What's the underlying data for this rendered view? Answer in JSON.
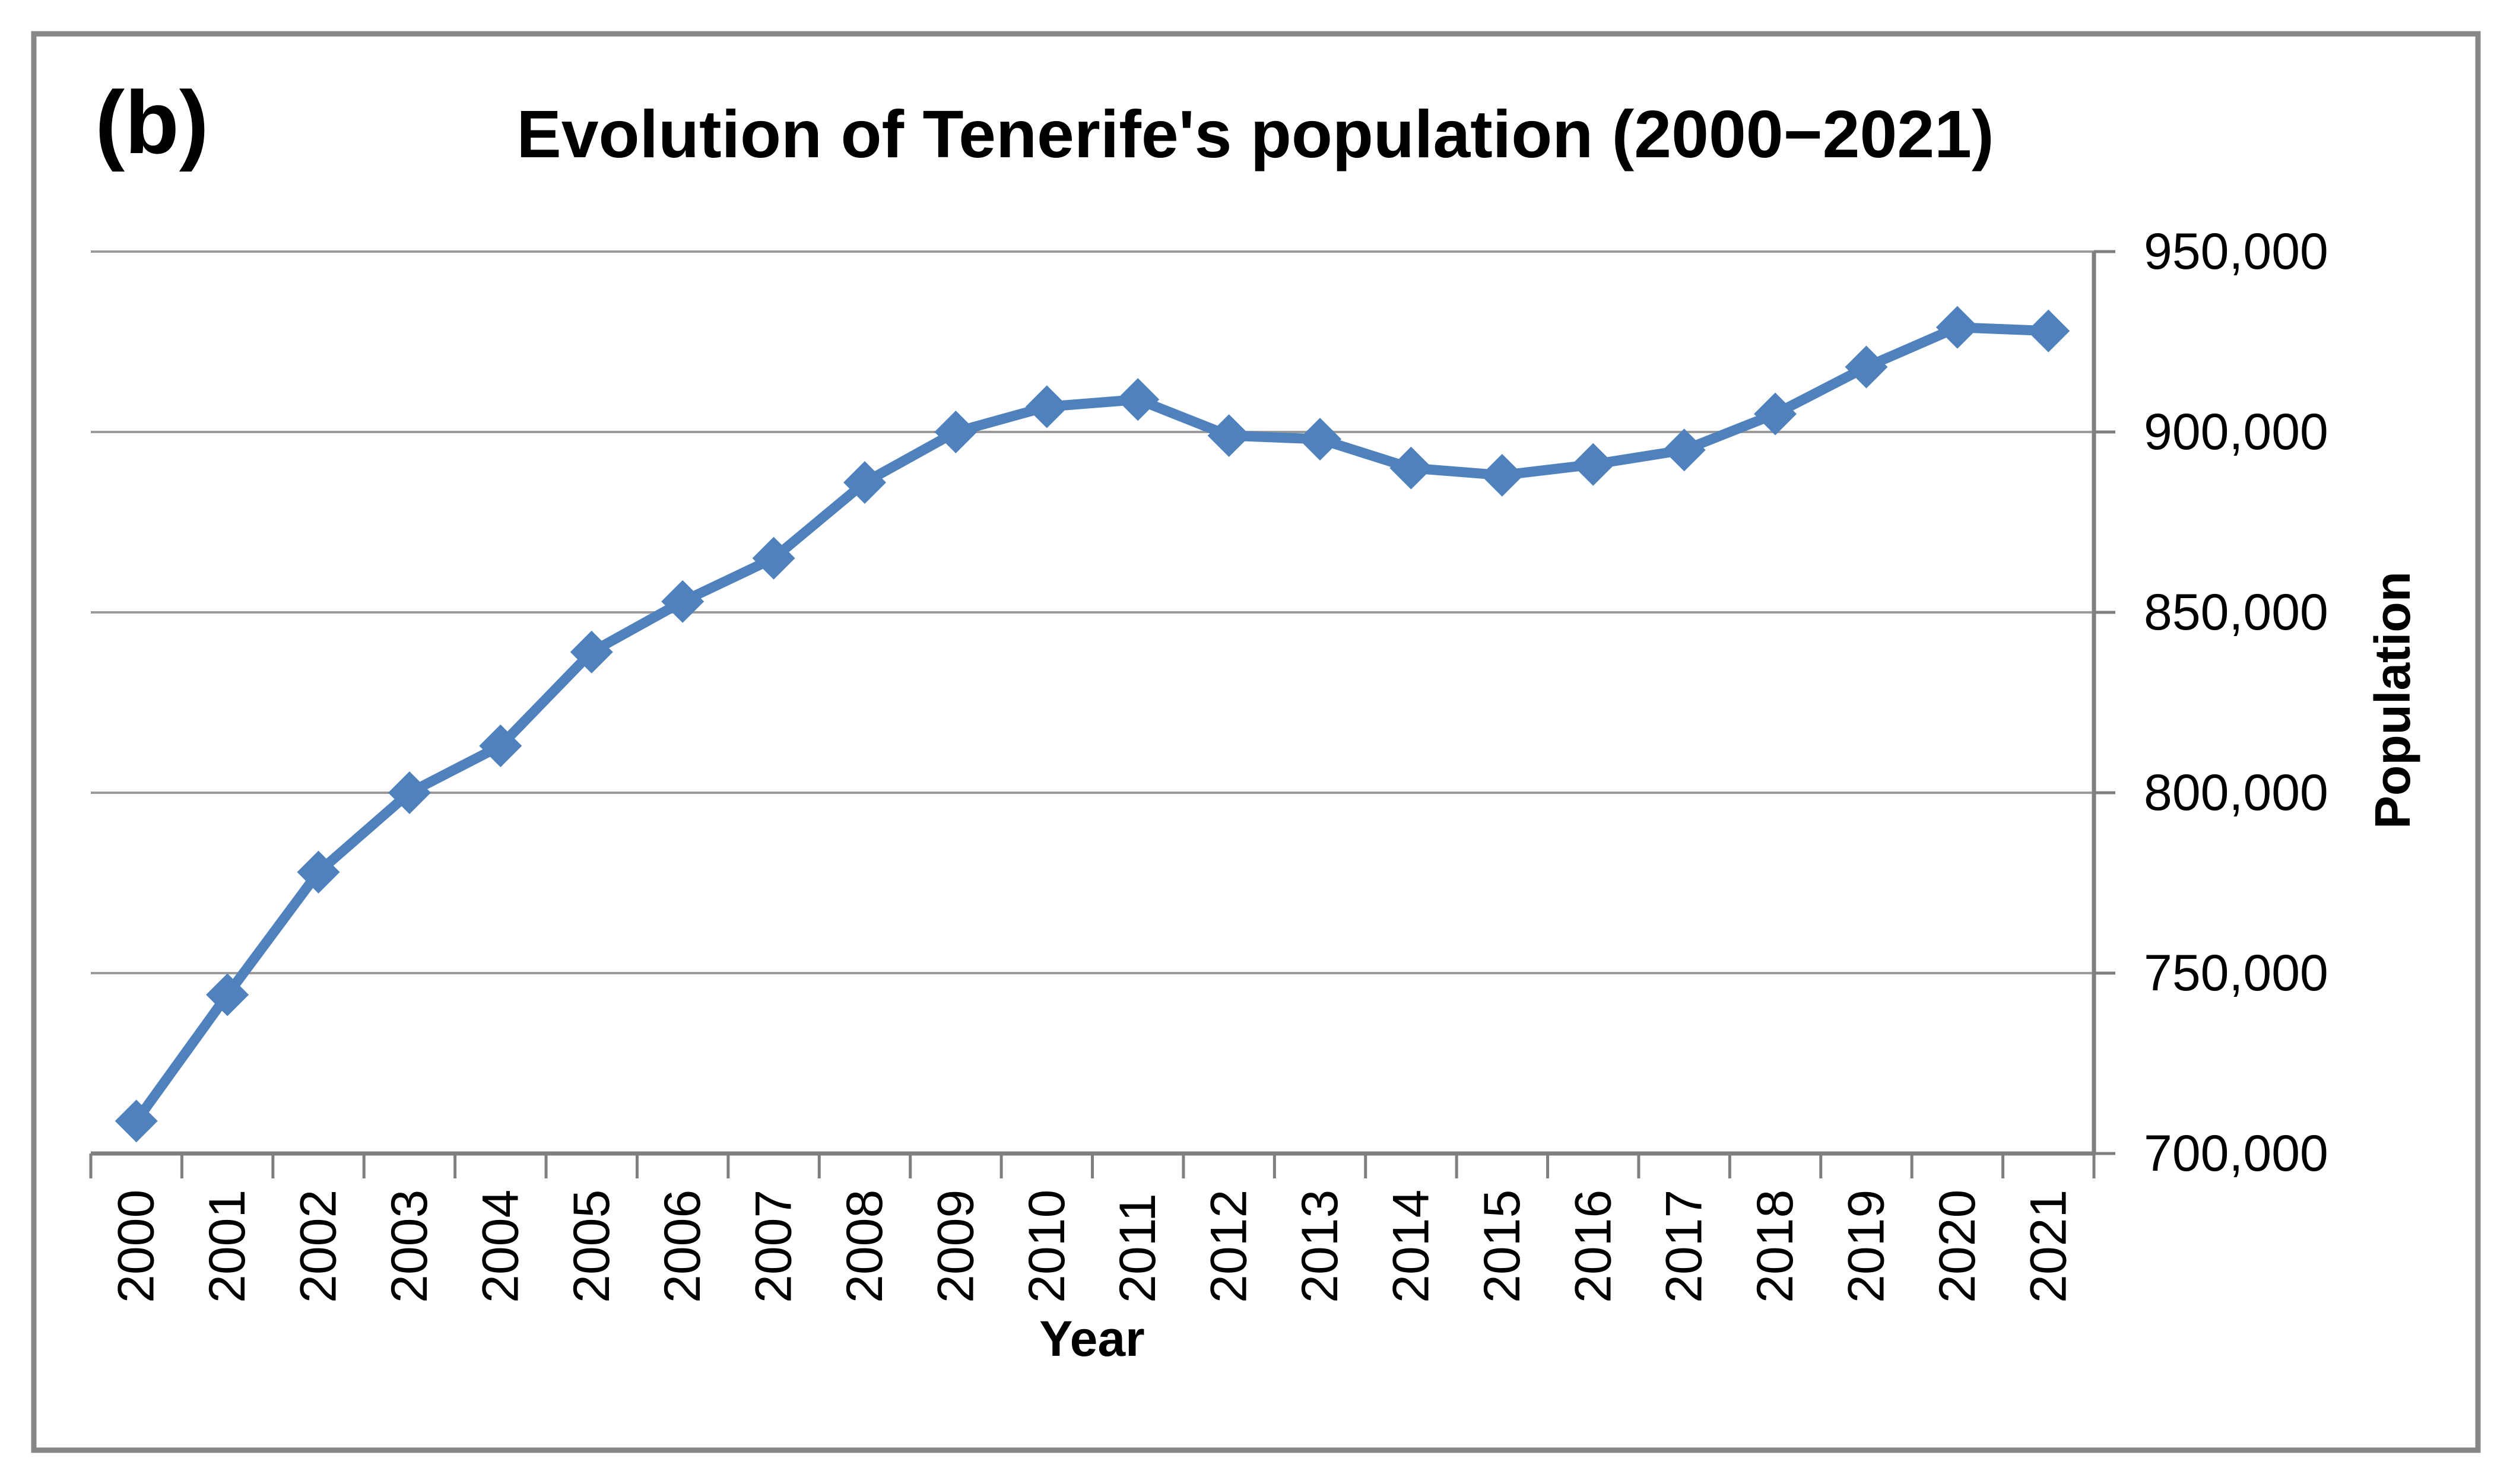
{
  "figure_label": "(b)",
  "title": "Evolution of Tenerife's population (2000−2021)",
  "axes": {
    "x_label": "Year",
    "y_label": "Population"
  },
  "colors": {
    "series": "#4F81BD",
    "gridline": "#9A9A9A",
    "axis": "#7F7F7F",
    "frame": "#878787",
    "background": "#FFFFFF",
    "text": "#000000"
  },
  "chart_data": {
    "type": "line",
    "title": "Evolution of Tenerife's population (2000−2021)",
    "xlabel": "Year",
    "ylabel": "Population",
    "categories": [
      "2000",
      "2001",
      "2002",
      "2003",
      "2004",
      "2005",
      "2006",
      "2007",
      "2008",
      "2009",
      "2010",
      "2011",
      "2012",
      "2013",
      "2014",
      "2015",
      "2016",
      "2017",
      "2018",
      "2019",
      "2020",
      "2021"
    ],
    "values": [
      709000,
      744000,
      778000,
      800000,
      813000,
      839000,
      853000,
      865000,
      886000,
      900000,
      907000,
      909000,
      899000,
      898000,
      890000,
      888000,
      891000,
      895000,
      905000,
      918000,
      929000,
      928000
    ],
    "ylim": [
      700000,
      950000
    ],
    "ytick_interval": 50000,
    "ytick_labels_top_to_bottom": [
      "950,000",
      "900,000",
      "850,000",
      "800,000",
      "750,000",
      "700,000"
    ],
    "grid": "horizontal",
    "legend": "none",
    "marker": "diamond",
    "y_axis_side": "right",
    "x_labels_rotation_deg": -90
  }
}
